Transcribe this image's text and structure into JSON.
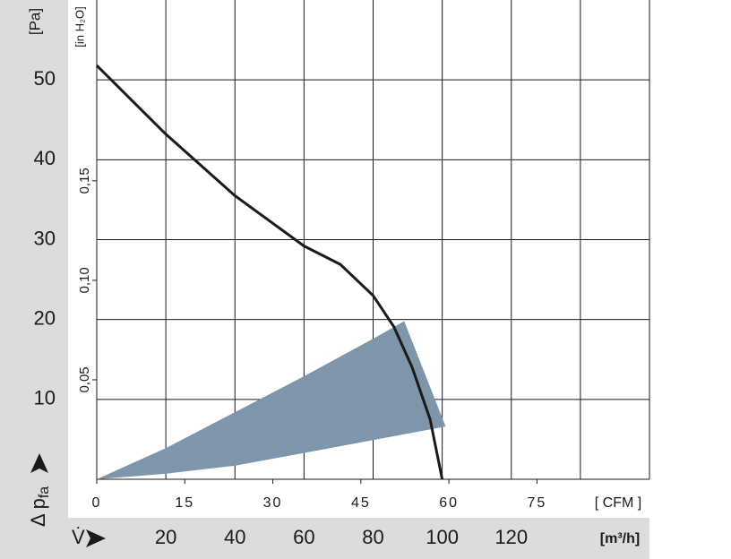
{
  "chart_data": {
    "type": "line",
    "y_unit": "[Pa]",
    "y_label": "Δ p",
    "y_label_sub": "fa",
    "y2_unit": "[in H₂O]",
    "x_label": "V̇",
    "x_unit": "[m³/h]",
    "x2_unit": "[ CFM ]",
    "xlim": [
      0,
      160
    ],
    "xticks": [
      20,
      40,
      60,
      80,
      100,
      120
    ],
    "xgrid": [
      20,
      40,
      60,
      80,
      100,
      120,
      140
    ],
    "x2lim": [
      0,
      94.17
    ],
    "x2ticks": [
      0,
      15,
      30,
      45,
      60,
      75
    ],
    "ylim": [
      0,
      60
    ],
    "yticks": [
      10,
      20,
      30,
      40,
      50
    ],
    "y2lim": [
      0,
      0.2409
    ],
    "y2ticks": [
      {
        "value": 0.05,
        "label": "0,05"
      },
      {
        "value": 0.1,
        "label": "0,10"
      },
      {
        "value": 0.15,
        "label": "0,15"
      }
    ],
    "grid": true,
    "series": [
      {
        "color": "#1a1a1a",
        "x": [
          0,
          20,
          40,
          60,
          70.5,
          80,
          86,
          91.3,
          96.5,
          100
        ],
        "values": [
          51.8,
          43.2,
          35.5,
          29.2,
          26.9,
          23.0,
          19.1,
          14.0,
          7.5,
          0
        ]
      }
    ],
    "band": {
      "color": "#7f95aa",
      "upper_x": [
        0,
        20,
        40,
        60,
        80,
        89
      ],
      "upper": [
        0,
        3.9,
        8.4,
        12.9,
        17.6,
        19.8
      ],
      "lower_x": [
        0,
        20,
        40,
        60,
        80,
        101
      ],
      "lower": [
        0,
        0.7,
        1.7,
        3.3,
        4.9,
        6.6
      ]
    }
  }
}
